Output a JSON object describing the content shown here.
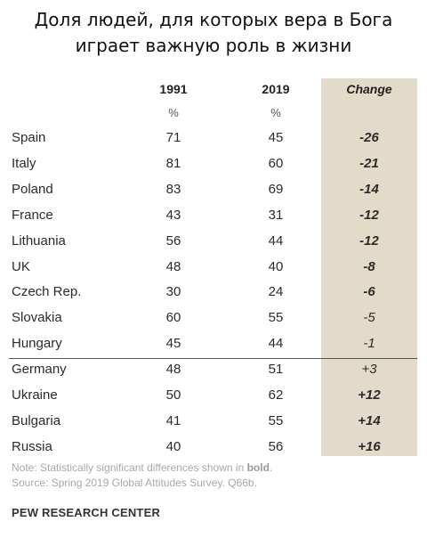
{
  "title": {
    "line1": "Доля людей, для которых вера в Бога",
    "line2": "играет важную роль в жизни"
  },
  "columns": {
    "year1": "1991",
    "year2": "2019",
    "change": "Change",
    "unit1": "%",
    "unit2": "%"
  },
  "colors": {
    "change_band": "#e3dbc9",
    "note_text": "#a8a8a8"
  },
  "chart_data": {
    "type": "table",
    "title": "Доля людей, для которых вера в Бога играет важную роль в жизни",
    "columns": [
      "1991",
      "2019",
      "Change"
    ],
    "units": [
      "%",
      "%",
      ""
    ],
    "rows": [
      {
        "country": "Spain",
        "y1991": "71",
        "y2019": "45",
        "change": "-26",
        "significant": true
      },
      {
        "country": "Italy",
        "y1991": "81",
        "y2019": "60",
        "change": "-21",
        "significant": true
      },
      {
        "country": "Poland",
        "y1991": "83",
        "y2019": "69",
        "change": "-14",
        "significant": true
      },
      {
        "country": "France",
        "y1991": "43",
        "y2019": "31",
        "change": "-12",
        "significant": true
      },
      {
        "country": "Lithuania",
        "y1991": "56",
        "y2019": "44",
        "change": "-12",
        "significant": true
      },
      {
        "country": "UK",
        "y1991": "48",
        "y2019": "40",
        "change": "-8",
        "significant": true
      },
      {
        "country": "Czech Rep.",
        "y1991": "30",
        "y2019": "24",
        "change": "-6",
        "significant": true
      },
      {
        "country": "Slovakia",
        "y1991": "60",
        "y2019": "55",
        "change": "-5",
        "significant": false
      },
      {
        "country": "Hungary",
        "y1991": "45",
        "y2019": "44",
        "change": "-1",
        "significant": false
      },
      {
        "country": "Germany",
        "y1991": "48",
        "y2019": "51",
        "change": "+3",
        "significant": false
      },
      {
        "country": "Ukraine",
        "y1991": "50",
        "y2019": "62",
        "change": "+12",
        "significant": true
      },
      {
        "country": "Bulgaria",
        "y1991": "41",
        "y2019": "55",
        "change": "+14",
        "significant": true
      },
      {
        "country": "Russia",
        "y1991": "40",
        "y2019": "56",
        "change": "+16",
        "significant": true
      }
    ]
  },
  "note": {
    "prefix": "Note: Statistically significant differences shown in ",
    "bold_word": "bold",
    "suffix": ".",
    "source": "Source: Spring 2019 Global Attitudes Survey. Q66b."
  },
  "brand": "PEW RESEARCH CENTER"
}
